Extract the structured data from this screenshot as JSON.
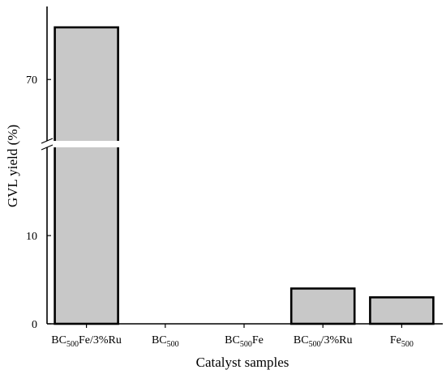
{
  "chart_data": {
    "type": "bar",
    "xlabel": "Catalyst samples",
    "ylabel": "GVL yield (%)",
    "categories": [
      {
        "parts": [
          [
            "BC",
            false
          ],
          [
            "500",
            true
          ],
          [
            "Fe/3%Ru",
            false
          ]
        ]
      },
      {
        "parts": [
          [
            "BC",
            false
          ],
          [
            "500",
            true
          ]
        ]
      },
      {
        "parts": [
          [
            "BC",
            false
          ],
          [
            "500",
            true
          ],
          [
            "Fe",
            false
          ]
        ]
      },
      {
        "parts": [
          [
            "BC",
            false
          ],
          [
            "500",
            true
          ],
          [
            "/3%Ru",
            false
          ]
        ]
      },
      {
        "parts": [
          [
            "Fe",
            false
          ],
          [
            "500",
            true
          ]
        ]
      }
    ],
    "values": [
      87,
      0,
      0,
      4,
      3
    ],
    "y_ticks": [
      0,
      10,
      70
    ],
    "axis_break": {
      "lower_max": 20,
      "upper_min": 50,
      "upper_max": 88
    },
    "grid": false,
    "bar_color": "#c8c8c8"
  }
}
